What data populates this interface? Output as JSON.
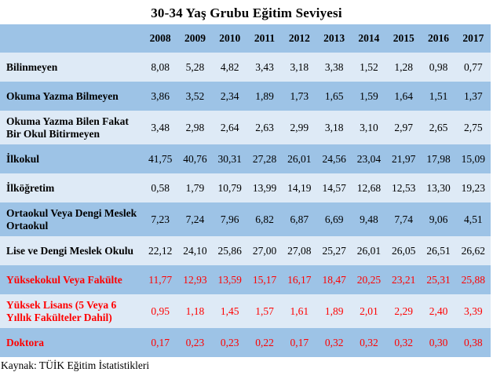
{
  "title": "30-34 Yaş Grubu Eğitim Seviyesi",
  "source_note": "Kaynak: TÜİK Eğitim İstatistikleri",
  "colors": {
    "header_bg": "#9DC3E6",
    "row_blue_bg": "#9DC3E6",
    "row_light_bg": "#DEEAF6",
    "text_normal": "#000000",
    "text_highlight": "#FF0000"
  },
  "chart_data": {
    "type": "table",
    "title": "30-34 Yaş Grubu Eğitim Seviyesi",
    "columns": [
      "2008",
      "2009",
      "2010",
      "2011",
      "2012",
      "2013",
      "2014",
      "2015",
      "2016",
      "2017"
    ],
    "rows": [
      {
        "label": "Bilinmeyen",
        "values": [
          "8,08",
          "5,28",
          "4,82",
          "3,43",
          "3,18",
          "3,38",
          "1,52",
          "1,28",
          "0,98",
          "0,77"
        ],
        "highlight": false
      },
      {
        "label": "Okuma Yazma Bilmeyen",
        "values": [
          "3,86",
          "3,52",
          "2,34",
          "1,89",
          "1,73",
          "1,65",
          "1,59",
          "1,64",
          "1,51",
          "1,37"
        ],
        "highlight": false
      },
      {
        "label": "Okuma Yazma Bilen Fakat Bir Okul Bitirmeyen",
        "values": [
          "3,48",
          "2,98",
          "2,64",
          "2,63",
          "2,99",
          "3,18",
          "3,10",
          "2,97",
          "2,65",
          "2,75"
        ],
        "highlight": false
      },
      {
        "label": "İlkokul",
        "values": [
          "41,75",
          "40,76",
          "30,31",
          "27,28",
          "26,01",
          "24,56",
          "23,04",
          "21,97",
          "17,98",
          "15,09"
        ],
        "highlight": false
      },
      {
        "label": "İlköğretim",
        "values": [
          "0,58",
          "1,79",
          "10,79",
          "13,99",
          "14,19",
          "14,57",
          "12,68",
          "12,53",
          "13,30",
          "19,23"
        ],
        "highlight": false
      },
      {
        "label": "Ortaokul Veya Dengi Meslek Ortaokul",
        "values": [
          "7,23",
          "7,24",
          "7,96",
          "6,82",
          "6,87",
          "6,69",
          "9,48",
          "7,74",
          "9,06",
          "4,51"
        ],
        "highlight": false
      },
      {
        "label": "Lise ve Dengi Meslek Okulu",
        "values": [
          "22,12",
          "24,10",
          "25,86",
          "27,00",
          "27,08",
          "25,27",
          "26,01",
          "26,05",
          "26,51",
          "26,62"
        ],
        "highlight": false
      },
      {
        "label": "Yüksekokul Veya Fakülte",
        "values": [
          "11,77",
          "12,93",
          "13,59",
          "15,17",
          "16,17",
          "18,47",
          "20,25",
          "23,21",
          "25,31",
          "25,88"
        ],
        "highlight": true
      },
      {
        "label": "Yüksek Lisans (5 Veya 6 Yıllık Fakülteler Dahil)",
        "values": [
          "0,95",
          "1,18",
          "1,45",
          "1,57",
          "1,61",
          "1,89",
          "2,01",
          "2,29",
          "2,40",
          "3,39"
        ],
        "highlight": true
      },
      {
        "label": "Doktora",
        "values": [
          "0,17",
          "0,23",
          "0,23",
          "0,22",
          "0,17",
          "0,32",
          "0,32",
          "0,32",
          "0,30",
          "0,38"
        ],
        "highlight": true
      }
    ]
  }
}
